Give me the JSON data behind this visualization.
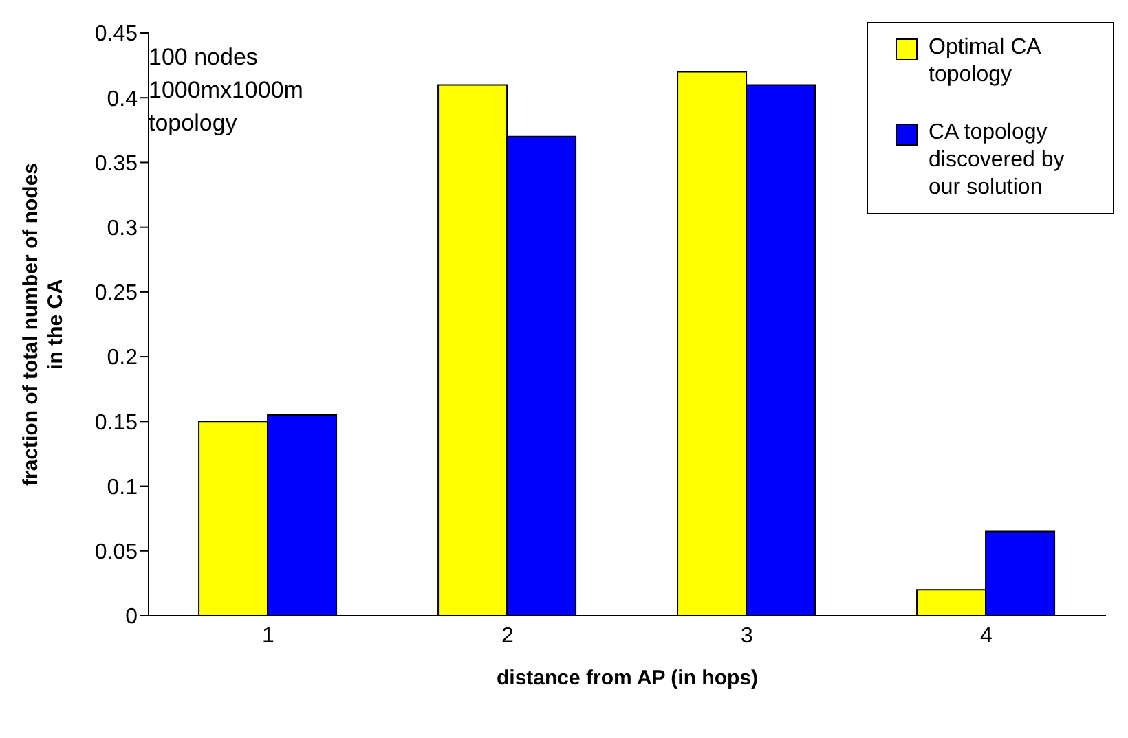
{
  "chart_data": {
    "type": "bar",
    "xlabel": "distance from AP (in hops)",
    "ylabel": "fraction of total number of nodes in the CA",
    "categories": [
      "1",
      "2",
      "3",
      "4"
    ],
    "series": [
      {
        "name": "Optimal CA topology",
        "color": "#ffff00",
        "values": [
          0.15,
          0.41,
          0.42,
          0.02
        ]
      },
      {
        "name": "CA topology discovered by our solution",
        "color": "#0000ff",
        "values": [
          0.155,
          0.37,
          0.41,
          0.065
        ]
      }
    ],
    "ylim": [
      0,
      0.45
    ],
    "yticks": [
      0,
      0.05,
      0.1,
      0.15,
      0.2,
      0.25,
      0.3,
      0.35,
      0.4,
      0.45
    ],
    "grid": false,
    "legend": "top right",
    "annotations": [
      "100 nodes 1000mx1000m topology"
    ]
  }
}
